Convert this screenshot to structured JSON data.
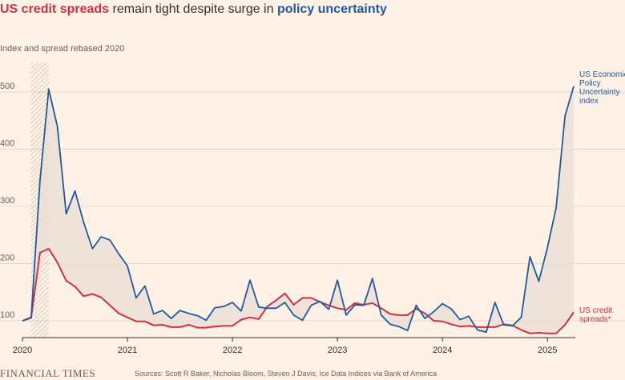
{
  "title": {
    "part1": "US credit spreads",
    "part2": " remain tight despite surge in ",
    "part3": "policy uncertainty"
  },
  "subtitle": "Index and spread rebased 2020",
  "footer": {
    "brand": "FINANCIAL TIMES",
    "source": "Sources: Scott R Baker, Nicholas Bloom, Steven J Davis; Ice Data Indices via Bank of America"
  },
  "chart_data": {
    "type": "line",
    "ylim": [
      80,
      540
    ],
    "yticks": [
      "100",
      "200",
      "300",
      "400",
      "500"
    ],
    "ytick_values": [
      100,
      200,
      300,
      400,
      500
    ],
    "xticks": [
      "2020",
      "2021",
      "2022",
      "2023",
      "2024",
      "2025"
    ],
    "xtick_values": [
      2020.0,
      2021.0,
      2022.0,
      2023.0,
      2024.0,
      2025.0
    ],
    "xlim": [
      2020.0,
      2025.25
    ],
    "grid": true,
    "shaded_period": [
      2020.08,
      2020.25
    ],
    "colors": {
      "epu": "#1f5a9e",
      "spread": "#cc3240",
      "fill": "#eaded4",
      "hatch": "#b8aca3"
    },
    "series": [
      {
        "name": "US Economic Policy Uncertainty index",
        "label_lines": [
          "US Economic",
          "Policy",
          "Uncertainty",
          "index"
        ],
        "values": [
          [
            2020.0,
            100
          ],
          [
            2020.083,
            105
          ],
          [
            2020.167,
            345
          ],
          [
            2020.25,
            505
          ],
          [
            2020.333,
            440
          ],
          [
            2020.417,
            287
          ],
          [
            2020.5,
            327
          ],
          [
            2020.583,
            272
          ],
          [
            2020.667,
            226
          ],
          [
            2020.75,
            247
          ],
          [
            2020.833,
            241
          ],
          [
            2020.917,
            217
          ],
          [
            2021.0,
            196
          ],
          [
            2021.083,
            140
          ],
          [
            2021.167,
            161
          ],
          [
            2021.25,
            112
          ],
          [
            2021.333,
            118
          ],
          [
            2021.417,
            104
          ],
          [
            2021.5,
            118
          ],
          [
            2021.583,
            113
          ],
          [
            2021.667,
            109
          ],
          [
            2021.75,
            101
          ],
          [
            2021.833,
            123
          ],
          [
            2021.917,
            125
          ],
          [
            2022.0,
            132
          ],
          [
            2022.083,
            117
          ],
          [
            2022.167,
            171
          ],
          [
            2022.25,
            124
          ],
          [
            2022.333,
            122
          ],
          [
            2022.417,
            122
          ],
          [
            2022.5,
            132
          ],
          [
            2022.583,
            110
          ],
          [
            2022.667,
            101
          ],
          [
            2022.75,
            127
          ],
          [
            2022.833,
            134
          ],
          [
            2022.917,
            120
          ],
          [
            2023.0,
            171
          ],
          [
            2023.083,
            110
          ],
          [
            2023.167,
            128
          ],
          [
            2023.25,
            127
          ],
          [
            2023.333,
            174
          ],
          [
            2023.417,
            110
          ],
          [
            2023.5,
            94
          ],
          [
            2023.583,
            90
          ],
          [
            2023.667,
            83
          ],
          [
            2023.75,
            127
          ],
          [
            2023.833,
            104
          ],
          [
            2023.917,
            116
          ],
          [
            2024.0,
            130
          ],
          [
            2024.083,
            121
          ],
          [
            2024.167,
            102
          ],
          [
            2024.25,
            108
          ],
          [
            2024.333,
            84
          ],
          [
            2024.417,
            80
          ],
          [
            2024.5,
            132
          ],
          [
            2024.583,
            93
          ],
          [
            2024.667,
            91
          ],
          [
            2024.75,
            106
          ],
          [
            2024.833,
            212
          ],
          [
            2024.917,
            169
          ],
          [
            2025.0,
            228
          ],
          [
            2025.083,
            298
          ],
          [
            2025.167,
            458
          ],
          [
            2025.25,
            510
          ]
        ]
      },
      {
        "name": "US credit spreads*",
        "label_lines": [
          "US credit",
          "spreads*"
        ],
        "values": [
          [
            2020.0,
            100
          ],
          [
            2020.083,
            106
          ],
          [
            2020.167,
            219
          ],
          [
            2020.25,
            226
          ],
          [
            2020.333,
            202
          ],
          [
            2020.417,
            170
          ],
          [
            2020.5,
            160
          ],
          [
            2020.583,
            143
          ],
          [
            2020.667,
            147
          ],
          [
            2020.75,
            141
          ],
          [
            2020.833,
            127
          ],
          [
            2020.917,
            113
          ],
          [
            2021.0,
            106
          ],
          [
            2021.083,
            99
          ],
          [
            2021.167,
            99
          ],
          [
            2021.25,
            92
          ],
          [
            2021.333,
            93
          ],
          [
            2021.417,
            89
          ],
          [
            2021.5,
            89
          ],
          [
            2021.583,
            93
          ],
          [
            2021.667,
            88
          ],
          [
            2021.75,
            88
          ],
          [
            2021.833,
            90
          ],
          [
            2021.917,
            91
          ],
          [
            2022.0,
            91
          ],
          [
            2022.083,
            102
          ],
          [
            2022.167,
            106
          ],
          [
            2022.25,
            103
          ],
          [
            2022.333,
            125
          ],
          [
            2022.417,
            136
          ],
          [
            2022.5,
            148
          ],
          [
            2022.583,
            128
          ],
          [
            2022.667,
            140
          ],
          [
            2022.75,
            140
          ],
          [
            2022.833,
            133
          ],
          [
            2022.917,
            127
          ],
          [
            2023.0,
            122
          ],
          [
            2023.083,
            119
          ],
          [
            2023.167,
            131
          ],
          [
            2023.25,
            128
          ],
          [
            2023.333,
            131
          ],
          [
            2023.417,
            122
          ],
          [
            2023.5,
            112
          ],
          [
            2023.583,
            110
          ],
          [
            2023.667,
            110
          ],
          [
            2023.75,
            121
          ],
          [
            2023.833,
            113
          ],
          [
            2023.917,
            100
          ],
          [
            2024.0,
            99
          ],
          [
            2024.083,
            94
          ],
          [
            2024.167,
            90
          ],
          [
            2024.25,
            91
          ],
          [
            2024.333,
            89
          ],
          [
            2024.417,
            89
          ],
          [
            2024.5,
            89
          ],
          [
            2024.583,
            94
          ],
          [
            2024.667,
            92
          ],
          [
            2024.75,
            84
          ],
          [
            2024.833,
            78
          ],
          [
            2024.917,
            79
          ],
          [
            2025.0,
            78
          ],
          [
            2025.083,
            78
          ],
          [
            2025.167,
            93
          ],
          [
            2025.25,
            115
          ]
        ]
      }
    ]
  }
}
